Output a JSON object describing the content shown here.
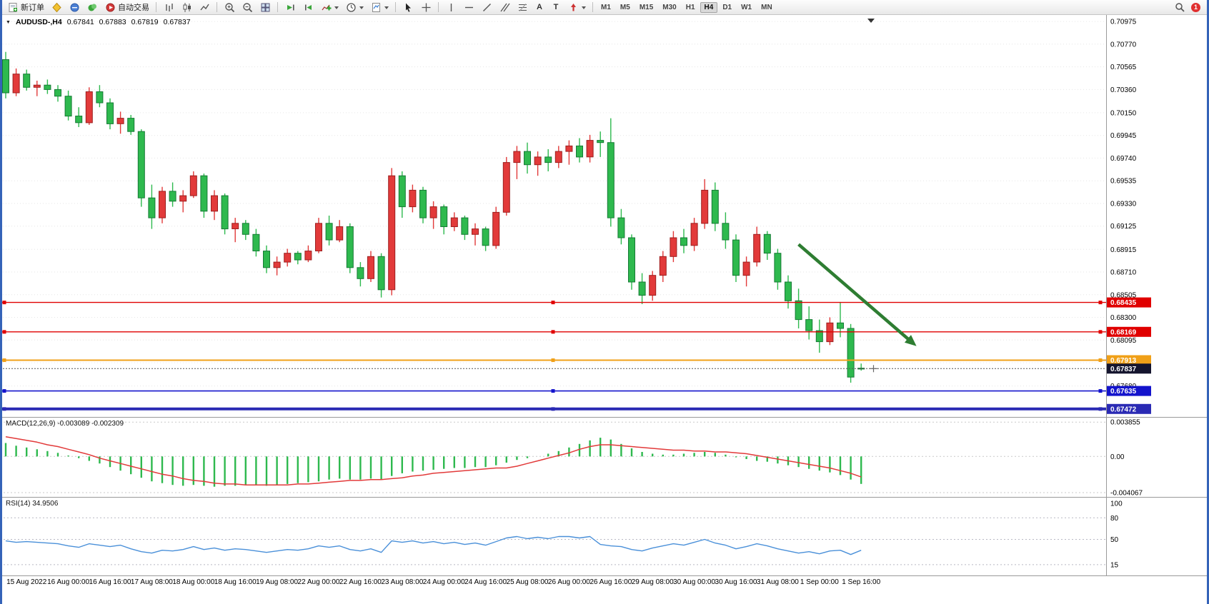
{
  "toolbar": {
    "new_order": "新订单",
    "auto_trading": "自动交易",
    "timeframes": [
      "M1",
      "M5",
      "M15",
      "M30",
      "H1",
      "H4",
      "D1",
      "W1",
      "MN"
    ],
    "active_timeframe": "H4",
    "notification_count": "1",
    "text_tool_glyph": "A",
    "label_tool_glyph": "T"
  },
  "header": {
    "symbol": "AUDUSD-,H4",
    "open": "0.67841",
    "high": "0.67883",
    "low": "0.67819",
    "close": "0.67837"
  },
  "chart_data": [
    {
      "type": "candlestick",
      "title": "AUDUSD-,H4",
      "up_color": "#e23a3a",
      "down_color": "#2eb94e",
      "ylim": [
        0.674,
        0.7104
      ],
      "y_ticks": [
        "0.70975",
        "0.70770",
        "0.70565",
        "0.70360",
        "0.70150",
        "0.69945",
        "0.69740",
        "0.69535",
        "0.69330",
        "0.69125",
        "0.68915",
        "0.68710",
        "0.68505",
        "0.68300",
        "0.68095",
        "0.67890",
        "0.67680"
      ],
      "x_labels": [
        "15 Aug 2022",
        "16 Aug 00:00",
        "16 Aug 16:00",
        "17 Aug 08:00",
        "18 Aug 00:00",
        "18 Aug 16:00",
        "19 Aug 08:00",
        "22 Aug 00:00",
        "22 Aug 16:00",
        "23 Aug 08:00",
        "24 Aug 00:00",
        "24 Aug 16:00",
        "25 Aug 08:00",
        "26 Aug 00:00",
        "26 Aug 16:00",
        "29 Aug 08:00",
        "30 Aug 00:00",
        "30 Aug 16:00",
        "31 Aug 08:00",
        "1 Sep 00:00",
        "1 Sep 16:00"
      ],
      "candles": [
        [
          0.7063,
          0.707,
          0.7028,
          0.7033
        ],
        [
          0.7033,
          0.7055,
          0.703,
          0.705
        ],
        [
          0.705,
          0.7054,
          0.7035,
          0.7038
        ],
        [
          0.7038,
          0.7044,
          0.703,
          0.704
        ],
        [
          0.704,
          0.7045,
          0.7032,
          0.7036
        ],
        [
          0.7036,
          0.704,
          0.7025,
          0.703
        ],
        [
          0.703,
          0.7035,
          0.7008,
          0.7012
        ],
        [
          0.7012,
          0.702,
          0.7002,
          0.7006
        ],
        [
          0.7006,
          0.7038,
          0.7004,
          0.7034
        ],
        [
          0.7034,
          0.704,
          0.702,
          0.7024
        ],
        [
          0.7024,
          0.7028,
          0.7,
          0.7005
        ],
        [
          0.7005,
          0.7016,
          0.6996,
          0.701
        ],
        [
          0.701,
          0.7013,
          0.6995,
          0.6998
        ],
        [
          0.6998,
          0.7,
          0.693,
          0.6938
        ],
        [
          0.6938,
          0.695,
          0.691,
          0.692
        ],
        [
          0.692,
          0.6948,
          0.6915,
          0.6944
        ],
        [
          0.6944,
          0.6952,
          0.693,
          0.6935
        ],
        [
          0.6935,
          0.6945,
          0.6925,
          0.694
        ],
        [
          0.694,
          0.6962,
          0.6938,
          0.6958
        ],
        [
          0.6958,
          0.696,
          0.692,
          0.6926
        ],
        [
          0.6926,
          0.6945,
          0.6918,
          0.694
        ],
        [
          0.694,
          0.6942,
          0.6905,
          0.691
        ],
        [
          0.691,
          0.692,
          0.6898,
          0.6915
        ],
        [
          0.6915,
          0.6918,
          0.69,
          0.6905
        ],
        [
          0.6905,
          0.691,
          0.6885,
          0.689
        ],
        [
          0.689,
          0.6895,
          0.687,
          0.6875
        ],
        [
          0.6875,
          0.6885,
          0.6868,
          0.688
        ],
        [
          0.688,
          0.6892,
          0.6876,
          0.6888
        ],
        [
          0.6888,
          0.689,
          0.6878,
          0.6882
        ],
        [
          0.6882,
          0.6895,
          0.688,
          0.689
        ],
        [
          0.689,
          0.692,
          0.6888,
          0.6915
        ],
        [
          0.6915,
          0.6922,
          0.6895,
          0.69
        ],
        [
          0.69,
          0.6918,
          0.6898,
          0.6912
        ],
        [
          0.6912,
          0.6915,
          0.687,
          0.6875
        ],
        [
          0.6875,
          0.688,
          0.6858,
          0.6865
        ],
        [
          0.6865,
          0.689,
          0.6862,
          0.6885
        ],
        [
          0.6885,
          0.6888,
          0.6848,
          0.6855
        ],
        [
          0.6855,
          0.6965,
          0.685,
          0.6958
        ],
        [
          0.6958,
          0.6962,
          0.692,
          0.693
        ],
        [
          0.693,
          0.695,
          0.6925,
          0.6945
        ],
        [
          0.6945,
          0.6948,
          0.6915,
          0.692
        ],
        [
          0.692,
          0.6935,
          0.691,
          0.693
        ],
        [
          0.693,
          0.6932,
          0.6905,
          0.6912
        ],
        [
          0.6912,
          0.6925,
          0.6908,
          0.692
        ],
        [
          0.692,
          0.6922,
          0.69,
          0.6905
        ],
        [
          0.6905,
          0.6915,
          0.6895,
          0.691
        ],
        [
          0.691,
          0.6912,
          0.689,
          0.6895
        ],
        [
          0.6895,
          0.693,
          0.6892,
          0.6925
        ],
        [
          0.6925,
          0.6975,
          0.6922,
          0.697
        ],
        [
          0.697,
          0.6985,
          0.6955,
          0.698
        ],
        [
          0.698,
          0.6988,
          0.696,
          0.6968
        ],
        [
          0.6968,
          0.698,
          0.6958,
          0.6975
        ],
        [
          0.6975,
          0.6982,
          0.6962,
          0.697
        ],
        [
          0.697,
          0.6985,
          0.6965,
          0.698
        ],
        [
          0.698,
          0.699,
          0.6968,
          0.6985
        ],
        [
          0.6985,
          0.6992,
          0.697,
          0.6975
        ],
        [
          0.6975,
          0.6995,
          0.697,
          0.699
        ],
        [
          0.699,
          0.6998,
          0.6975,
          0.6988
        ],
        [
          0.6988,
          0.701,
          0.6912,
          0.692
        ],
        [
          0.692,
          0.6928,
          0.6896,
          0.6902
        ],
        [
          0.6902,
          0.6905,
          0.6855,
          0.6862
        ],
        [
          0.6862,
          0.687,
          0.6842,
          0.685
        ],
        [
          0.685,
          0.6872,
          0.6845,
          0.6868
        ],
        [
          0.6868,
          0.689,
          0.6862,
          0.6885
        ],
        [
          0.6885,
          0.6908,
          0.688,
          0.6902
        ],
        [
          0.6902,
          0.691,
          0.6888,
          0.6895
        ],
        [
          0.6895,
          0.692,
          0.689,
          0.6915
        ],
        [
          0.6915,
          0.6955,
          0.691,
          0.6945
        ],
        [
          0.6945,
          0.6952,
          0.6908,
          0.6915
        ],
        [
          0.6915,
          0.6925,
          0.6892,
          0.69
        ],
        [
          0.69,
          0.6905,
          0.6862,
          0.6868
        ],
        [
          0.6868,
          0.6885,
          0.6858,
          0.688
        ],
        [
          0.688,
          0.6912,
          0.6876,
          0.6905
        ],
        [
          0.6905,
          0.6908,
          0.6882,
          0.6888
        ],
        [
          0.6888,
          0.6892,
          0.6855,
          0.6862
        ],
        [
          0.6862,
          0.6868,
          0.6838,
          0.6845
        ],
        [
          0.6845,
          0.6856,
          0.682,
          0.6828
        ],
        [
          0.6828,
          0.684,
          0.681,
          0.6818
        ],
        [
          0.6818,
          0.6828,
          0.6798,
          0.6808
        ],
        [
          0.6808,
          0.683,
          0.6805,
          0.6825
        ],
        [
          0.6825,
          0.6844,
          0.6812,
          0.682
        ],
        [
          0.682,
          0.6824,
          0.6771,
          0.6776
        ],
        [
          0.67841,
          0.67883,
          0.67819,
          0.67837
        ]
      ],
      "hlines": [
        {
          "value": 0.68435,
          "label": "0.68435",
          "color": "#e00000",
          "width": 1.4
        },
        {
          "value": 0.68169,
          "label": "0.68169",
          "color": "#e00000",
          "width": 1.4
        },
        {
          "value": 0.67913,
          "label": "0.67913",
          "color": "#f0a018",
          "width": 2
        },
        {
          "value": 0.67635,
          "label": "0.67635",
          "color": "#1414cc",
          "width": 1.6
        },
        {
          "value": 0.67472,
          "label": "0.67472",
          "color": "#2a2ab4",
          "width": 4
        }
      ],
      "current_price": {
        "value": 0.67837,
        "label": "0.67837",
        "color": "#15152e"
      },
      "trend_arrow": {
        "x1_bar": 76,
        "price1": 0.6896,
        "x2_bar": 87.3,
        "price2": 0.6804,
        "color": "#2e7d32"
      }
    },
    {
      "type": "macd",
      "label": "MACD(12,26,9) -0.003089 -0.002309",
      "ylim": [
        -0.00455,
        0.00435
      ],
      "y_ticks": [
        "0.003855",
        "0.00",
        "-0.004067"
      ],
      "tick_values": [
        0.003855,
        0,
        -0.004067
      ],
      "histogram_color": "#2eb94e",
      "signal_color": "#e23a3a",
      "histogram": [
        0.0015,
        0.0012,
        0.001,
        0.0008,
        0.0006,
        0.0004,
        0.0001,
        -0.0002,
        -0.0005,
        -0.0008,
        -0.0012,
        -0.0016,
        -0.002,
        -0.0024,
        -0.0028,
        -0.003,
        -0.0032,
        -0.0033,
        -0.0032,
        -0.0033,
        -0.0034,
        -0.0033,
        -0.0033,
        -0.0032,
        -0.0032,
        -0.0033,
        -0.0032,
        -0.0031,
        -0.003,
        -0.0029,
        -0.0028,
        -0.0026,
        -0.0025,
        -0.0026,
        -0.0026,
        -0.0025,
        -0.0026,
        -0.0022,
        -0.0019,
        -0.0017,
        -0.0016,
        -0.0015,
        -0.0014,
        -0.0013,
        -0.0013,
        -0.0012,
        -0.0012,
        -0.001,
        -0.0007,
        -0.0004,
        -0.0002,
        0.0,
        0.0003,
        0.0006,
        0.001,
        0.0014,
        0.0018,
        0.0021,
        0.0019,
        0.0014,
        0.0009,
        0.0005,
        0.0003,
        0.0002,
        0.0002,
        0.0003,
        0.0004,
        0.0005,
        0.0004,
        0.0002,
        -0.0001,
        -0.0003,
        -0.0005,
        -0.0006,
        -0.0008,
        -0.001,
        -0.0012,
        -0.0014,
        -0.0016,
        -0.0018,
        -0.0021,
        -0.0026,
        -0.003089
      ],
      "signal": [
        0.0022,
        0.002,
        0.0018,
        0.0016,
        0.0013,
        0.0011,
        0.0008,
        0.0005,
        0.0002,
        -0.0002,
        -0.0005,
        -0.0008,
        -0.0011,
        -0.0014,
        -0.0017,
        -0.002,
        -0.0022,
        -0.0025,
        -0.0027,
        -0.0028,
        -0.003,
        -0.0031,
        -0.0031,
        -0.0032,
        -0.0032,
        -0.0032,
        -0.0032,
        -0.0032,
        -0.0031,
        -0.0031,
        -0.003,
        -0.0029,
        -0.0028,
        -0.0027,
        -0.0027,
        -0.0026,
        -0.0026,
        -0.0025,
        -0.0024,
        -0.0022,
        -0.0021,
        -0.0019,
        -0.0018,
        -0.0017,
        -0.0016,
        -0.0015,
        -0.0014,
        -0.0013,
        -0.0013,
        -0.0011,
        -0.0008,
        -0.0005,
        -0.0002,
        0.0001,
        0.0004,
        0.0008,
        0.0011,
        0.0013,
        0.0013,
        0.0012,
        0.0011,
        0.001,
        0.0009,
        0.0008,
        0.0007,
        0.0007,
        0.0006,
        0.0006,
        0.0005,
        0.0005,
        0.0004,
        0.0003,
        0.0001,
        -0.0001,
        -0.0003,
        -0.0005,
        -0.0007,
        -0.0009,
        -0.0011,
        -0.0013,
        -0.0016,
        -0.0019,
        -0.002309
      ]
    },
    {
      "type": "rsi",
      "label": "RSI(14) 34.9506",
      "ylim": [
        0,
        108
      ],
      "y_ticks": [
        "100",
        "80",
        "50",
        "15"
      ],
      "tick_values": [
        100,
        80,
        50,
        15
      ],
      "levels": [
        80,
        50,
        15
      ],
      "line_color": "#4a90d9",
      "values": [
        48,
        46,
        47,
        46,
        45,
        44,
        41,
        39,
        44,
        42,
        40,
        42,
        37,
        33,
        31,
        35,
        34,
        36,
        40,
        36,
        38,
        35,
        37,
        36,
        34,
        32,
        34,
        36,
        35,
        37,
        41,
        39,
        41,
        36,
        34,
        37,
        32,
        48,
        46,
        48,
        45,
        47,
        44,
        46,
        43,
        45,
        42,
        47,
        52,
        54,
        51,
        53,
        51,
        54,
        54,
        52,
        54,
        43,
        41,
        40,
        36,
        34,
        38,
        41,
        44,
        42,
        46,
        50,
        45,
        42,
        37,
        40,
        44,
        41,
        37,
        34,
        31,
        33,
        30,
        34,
        35,
        29,
        34.95
      ]
    }
  ]
}
